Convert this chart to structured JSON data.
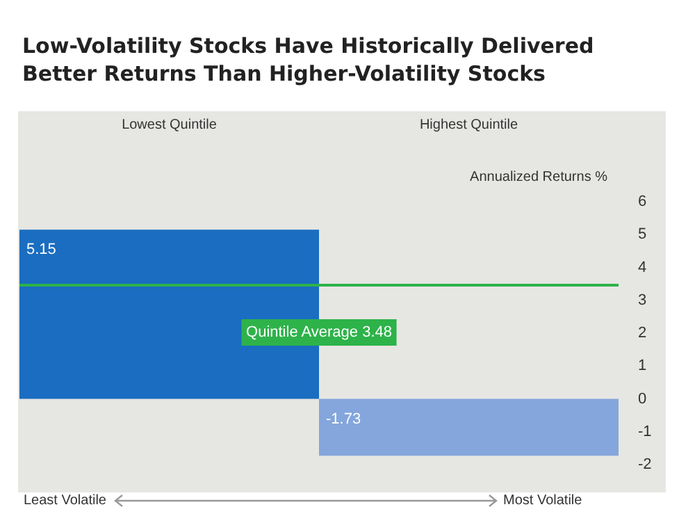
{
  "chart_data": {
    "type": "bar",
    "title": "Low-Volatility Stocks Have Historically Delivered Better Returns Than Higher-Volatility Stocks",
    "categories": [
      "Lowest Quintile",
      "Highest Quintile"
    ],
    "values": [
      5.15,
      -1.73
    ],
    "colors": [
      "#1a6dc0",
      "#84a6dc"
    ],
    "data_labels": true,
    "ylabel": "Annualized Returns %",
    "ylim": [
      -2,
      6
    ],
    "yticks": [
      -2,
      -1,
      0,
      1,
      2,
      3,
      4,
      5,
      6
    ],
    "ref_lines": [
      {
        "axis": "y",
        "value": 3.48,
        "label": "Quintile Average 3.48",
        "color": "#2db34a"
      }
    ],
    "annotations": [
      "Least Volatile",
      "Most Volatile"
    ],
    "grid": false
  }
}
